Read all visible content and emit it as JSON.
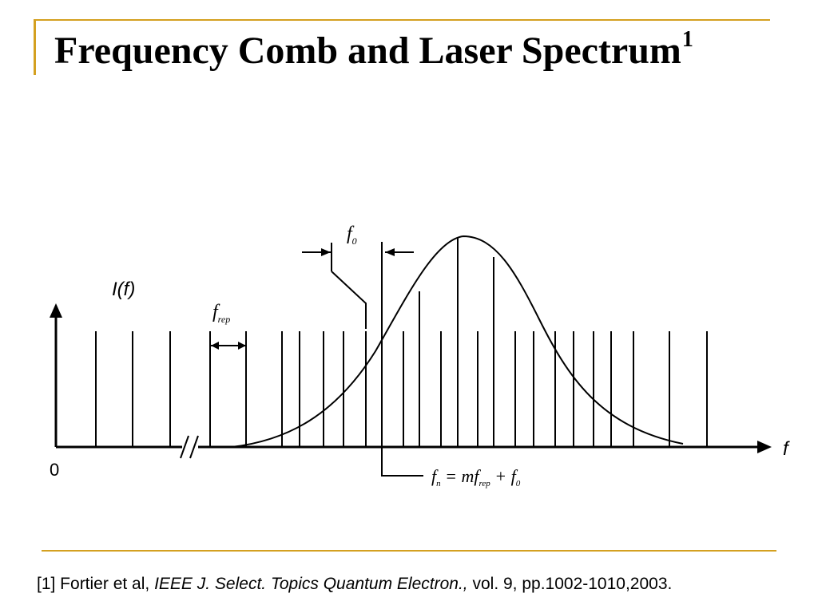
{
  "slide": {
    "title": "Frequency Comb and Laser Spectrum",
    "title_superscript": "1",
    "accent_color": "#d4a020"
  },
  "diagram": {
    "y_axis_label": "I(f)",
    "x_axis_label": "f",
    "origin_label": "0",
    "offset_label": "f0",
    "spacing_label": "frep",
    "equation": "fn = mfrep + f0",
    "comb_line_count": 24
  },
  "footnote": {
    "prefix": "[1] Fortier et al, ",
    "journal": "IEEE J. Select. Topics Quantum Electron.,",
    "suffix": " vol. 9, pp.1002-1010,2003."
  }
}
